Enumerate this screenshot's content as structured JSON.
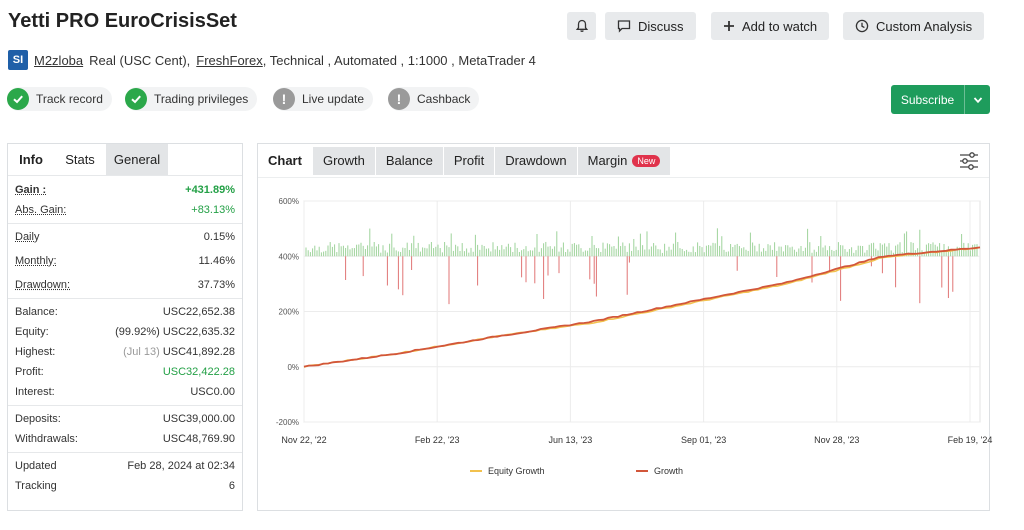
{
  "header": {
    "title": "Yetti PRO EuroCrisisSet",
    "discuss_label": "Discuss",
    "watch_label": "Add to watch",
    "custom_label": "Custom Analysis"
  },
  "meta": {
    "logo_text": "SI",
    "author": "M2zloba",
    "account": "Real (USC Cent),",
    "broker": "FreshForex",
    "rest": ", Technical , Automated , 1:1000 , MetaTrader 4"
  },
  "badges": {
    "track": "Track record",
    "privileges": "Trading privileges",
    "live": "Live update",
    "cashback": "Cashback"
  },
  "subscribe_label": "Subscribe",
  "left_tabs": {
    "info": "Info",
    "stats": "Stats",
    "general": "General"
  },
  "stats": {
    "gain_k": "Gain :",
    "gain_v": "+431.89%",
    "abs_k": "Abs. Gain:",
    "abs_v": "+83.13%",
    "daily_k": "Daily",
    "daily_v": "0.15%",
    "monthly_k": "Monthly:",
    "monthly_v": "11.46%",
    "dd_k": "Drawdown:",
    "dd_v": "37.73%",
    "balance_k": "Balance:",
    "balance_v": "USC22,652.38",
    "equity_k": "Equity:",
    "equity_p": "(99.92%)",
    "equity_v": "USC22,635.32",
    "highest_k": "Highest:",
    "highest_p": "(Jul 13)",
    "highest_v": "USC41,892.28",
    "profit_k": "Profit:",
    "profit_v": "USC32,422.28",
    "interest_k": "Interest:",
    "interest_v": "USC0.00",
    "deposits_k": "Deposits:",
    "deposits_v": "USC39,000.00",
    "withdrawals_k": "Withdrawals:",
    "withdrawals_v": "USC48,769.90",
    "updated_k": "Updated",
    "updated_v": "Feb 28, 2024 at 02:34",
    "tracking_k": "Tracking",
    "tracking_v": "6"
  },
  "chart_tabs": {
    "chart": "Chart",
    "growth": "Growth",
    "balance": "Balance",
    "profit": "Profit",
    "drawdown": "Drawdown",
    "margin": "Margin",
    "new": "New"
  },
  "colors": {
    "growth_line": "#d2563a",
    "equity_line": "#f2c14e",
    "up_bars": "#9ed39b",
    "down_bars": "#e07575",
    "accent": "#1e9c5c"
  },
  "chart_data": {
    "type": "line",
    "ylim": [
      -200,
      600
    ],
    "y_ticks": [
      "600%",
      "400%",
      "200%",
      "0%",
      "-200%"
    ],
    "y_tick_values": [
      600,
      400,
      200,
      0,
      -200
    ],
    "x_tick_labels": [
      "Nov 22, '22",
      "Feb 22, '23",
      "Jun 13, '23",
      "Sep 01, '23",
      "Nov 28, '23",
      "Feb 19, '24"
    ],
    "grid": true,
    "legend_position": "bottom",
    "series": [
      {
        "name": "Equity Growth",
        "values_note": "",
        "values": [
          0,
          50,
          110,
          160,
          230,
          300,
          395,
          432
        ]
      },
      {
        "name": "Growth",
        "values": [
          0,
          50,
          110,
          165,
          235,
          305,
          400,
          432
        ]
      }
    ],
    "daily_bars_range": [
      -180,
      110
    ]
  }
}
